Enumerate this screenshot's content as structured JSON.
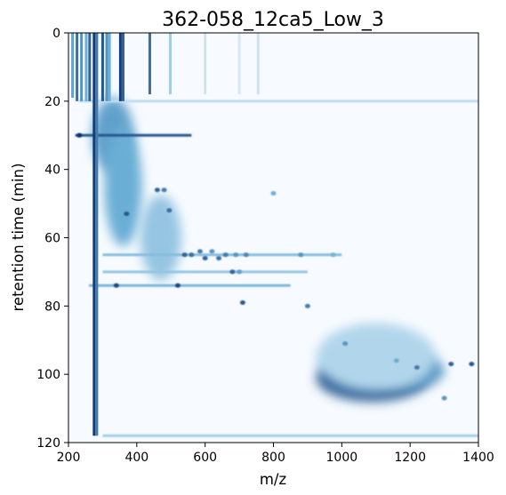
{
  "chart_data": {
    "type": "heatmap",
    "title": "362-058_12ca5_Low_3",
    "xlabel": "m/z",
    "ylabel": "retention time (min)",
    "xlim": [
      200,
      1400
    ],
    "ylim": [
      0,
      120
    ],
    "y_inverted": true,
    "x_ticks": [
      200,
      400,
      600,
      800,
      1000,
      1200,
      1400
    ],
    "y_ticks": [
      0,
      20,
      40,
      60,
      80,
      100,
      120
    ],
    "x_tick_labels": [
      "200",
      "400",
      "600",
      "800",
      "1000",
      "1200",
      "1400"
    ],
    "y_tick_labels": [
      "0",
      "20",
      "40",
      "60",
      "80",
      "100",
      "120"
    ],
    "colormap": "Blues",
    "colors": {
      "low": "#f7fbff",
      "mid": "#6baed6",
      "high": "#08306b"
    },
    "grid": false,
    "colorbar": false,
    "features": {
      "vertical_lines_mz": [
        {
          "mz": 212,
          "rt": [
            0,
            19
          ],
          "intensity": 0.55
        },
        {
          "mz": 225,
          "rt": [
            0,
            20
          ],
          "intensity": 0.75
        },
        {
          "mz": 238,
          "rt": [
            0,
            20
          ],
          "intensity": 0.6
        },
        {
          "mz": 252,
          "rt": [
            0,
            20
          ],
          "intensity": 0.5
        },
        {
          "mz": 262,
          "rt": [
            0,
            20
          ],
          "intensity": 0.8
        },
        {
          "mz": 275,
          "rt": [
            0,
            118
          ],
          "intensity": 0.95
        },
        {
          "mz": 283,
          "rt": [
            0,
            118
          ],
          "intensity": 0.7
        },
        {
          "mz": 300,
          "rt": [
            0,
            20
          ],
          "intensity": 0.85
        },
        {
          "mz": 312,
          "rt": [
            0,
            20
          ],
          "intensity": 0.6
        },
        {
          "mz": 320,
          "rt": [
            0,
            20
          ],
          "intensity": 0.5
        },
        {
          "mz": 352,
          "rt": [
            0,
            20
          ],
          "intensity": 0.95
        },
        {
          "mz": 360,
          "rt": [
            0,
            20
          ],
          "intensity": 0.8
        },
        {
          "mz": 438,
          "rt": [
            0,
            18
          ],
          "intensity": 0.75
        },
        {
          "mz": 498,
          "rt": [
            0,
            18
          ],
          "intensity": 0.3
        },
        {
          "mz": 600,
          "rt": [
            0,
            18
          ],
          "intensity": 0.15
        },
        {
          "mz": 700,
          "rt": [
            0,
            18
          ],
          "intensity": 0.12
        },
        {
          "mz": 755,
          "rt": [
            0,
            18
          ],
          "intensity": 0.15
        }
      ],
      "horizontal_bands_rt": [
        {
          "rt": 30,
          "mz": [
            220,
            560
          ],
          "intensity": 0.85
        },
        {
          "rt": 20,
          "mz": [
            230,
            1400
          ],
          "intensity": 0.2
        },
        {
          "rt": 65,
          "mz": [
            300,
            1000
          ],
          "intensity": 0.4
        },
        {
          "rt": 70,
          "mz": [
            300,
            900
          ],
          "intensity": 0.35
        },
        {
          "rt": 74,
          "mz": [
            260,
            850
          ],
          "intensity": 0.45
        },
        {
          "rt": 118,
          "mz": [
            300,
            1400
          ],
          "intensity": 0.3
        }
      ],
      "blobs": [
        {
          "mz": 330,
          "rt": 30,
          "w": 120,
          "h": 22,
          "intensity": 0.55
        },
        {
          "mz": 360,
          "rt": 45,
          "w": 110,
          "h": 35,
          "intensity": 0.5
        },
        {
          "mz": 470,
          "rt": 60,
          "w": 120,
          "h": 25,
          "intensity": 0.35
        },
        {
          "mz": 1090,
          "rt": 101,
          "w": 330,
          "h": 14,
          "intensity": 0.8
        },
        {
          "mz": 1200,
          "rt": 99,
          "w": 200,
          "h": 10,
          "intensity": 0.6
        },
        {
          "mz": 1100,
          "rt": 95,
          "w": 350,
          "h": 20,
          "intensity": 0.25
        }
      ],
      "spots": [
        {
          "mz": 232,
          "rt": 30,
          "intensity": 1.0
        },
        {
          "mz": 340,
          "rt": 74,
          "intensity": 0.9
        },
        {
          "mz": 370,
          "rt": 53,
          "intensity": 0.85
        },
        {
          "mz": 460,
          "rt": 46,
          "intensity": 0.8
        },
        {
          "mz": 480,
          "rt": 46,
          "intensity": 0.7
        },
        {
          "mz": 495,
          "rt": 52,
          "intensity": 0.75
        },
        {
          "mz": 520,
          "rt": 74,
          "intensity": 0.9
        },
        {
          "mz": 540,
          "rt": 65,
          "intensity": 0.8
        },
        {
          "mz": 560,
          "rt": 65,
          "intensity": 0.75
        },
        {
          "mz": 585,
          "rt": 64,
          "intensity": 0.7
        },
        {
          "mz": 600,
          "rt": 66,
          "intensity": 0.8
        },
        {
          "mz": 620,
          "rt": 64,
          "intensity": 0.6
        },
        {
          "mz": 640,
          "rt": 66,
          "intensity": 0.75
        },
        {
          "mz": 660,
          "rt": 65,
          "intensity": 0.7
        },
        {
          "mz": 680,
          "rt": 70,
          "intensity": 0.8
        },
        {
          "mz": 690,
          "rt": 65,
          "intensity": 0.6
        },
        {
          "mz": 700,
          "rt": 70,
          "intensity": 0.55
        },
        {
          "mz": 720,
          "rt": 65,
          "intensity": 0.65
        },
        {
          "mz": 710,
          "rt": 79,
          "intensity": 0.85
        },
        {
          "mz": 800,
          "rt": 47,
          "intensity": 0.5
        },
        {
          "mz": 880,
          "rt": 65,
          "intensity": 0.6
        },
        {
          "mz": 900,
          "rt": 80,
          "intensity": 0.7
        },
        {
          "mz": 975,
          "rt": 65,
          "intensity": 0.45
        },
        {
          "mz": 1010,
          "rt": 91,
          "intensity": 0.6
        },
        {
          "mz": 1160,
          "rt": 96,
          "intensity": 0.5
        },
        {
          "mz": 1220,
          "rt": 98,
          "intensity": 0.7
        },
        {
          "mz": 1320,
          "rt": 97,
          "intensity": 0.8
        },
        {
          "mz": 1380,
          "rt": 97,
          "intensity": 0.85
        },
        {
          "mz": 1300,
          "rt": 107,
          "intensity": 0.6
        }
      ]
    }
  }
}
